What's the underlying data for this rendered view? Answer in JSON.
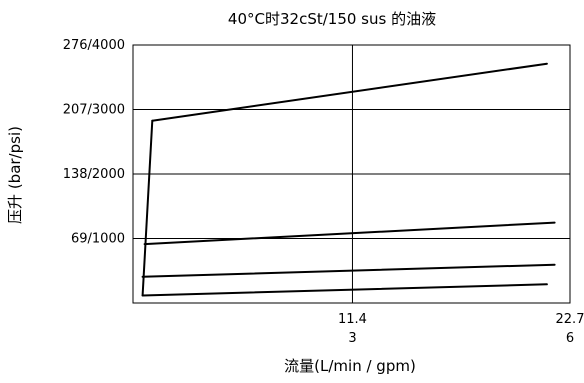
{
  "chart_data": {
    "type": "line",
    "title": "40°C时32cSt/150 sus 的油液",
    "xlabel": "流量(L/min / gpm)",
    "ylabel": "压升 (bar/psi)",
    "x_ticks": [
      {
        "value": 11.4,
        "label": "11.4",
        "sublabel": "3"
      },
      {
        "value": 22.7,
        "label": "22.7",
        "sublabel": "6"
      }
    ],
    "y_ticks": [
      {
        "value": 69,
        "label": "69/1000"
      },
      {
        "value": 138,
        "label": "138/2000"
      },
      {
        "value": 207,
        "label": "207/3000"
      },
      {
        "value": 276,
        "label": "276/4000"
      }
    ],
    "xlim": [
      0,
      22.7
    ],
    "ylim": [
      0,
      276
    ],
    "grid": true,
    "line_color": "#000000",
    "series": [
      {
        "x": [
          1.0,
          21.5
        ],
        "y": [
          195,
          256
        ]
      },
      {
        "x": [
          0.6,
          21.9
        ],
        "y": [
          63,
          86
        ]
      },
      {
        "x": [
          0.5,
          21.9
        ],
        "y": [
          28,
          41
        ]
      },
      {
        "x": [
          0.5,
          21.5
        ],
        "y": [
          8,
          20
        ]
      },
      {
        "x": [
          0.5,
          1.0
        ],
        "y": [
          8,
          195
        ]
      }
    ]
  }
}
